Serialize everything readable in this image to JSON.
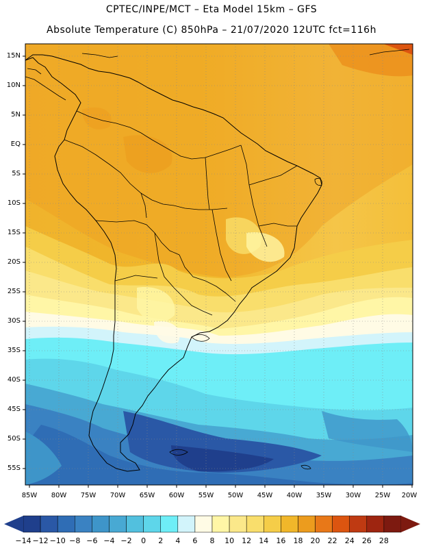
{
  "title_line1": "CPTEC/INPE/MCT –  Eta Model 15km – GFS",
  "title_line2": "Absolute Temperature (C) 850hPa – 21/07/2020 12UTC fct=116h",
  "lat_labels": [
    "15N",
    "10N",
    "5N",
    "EQ",
    "5S",
    "10S",
    "15S",
    "20S",
    "25S",
    "30S",
    "35S",
    "40S",
    "45S",
    "50S",
    "55S"
  ],
  "lon_labels": [
    "85W",
    "80W",
    "75W",
    "70W",
    "65W",
    "60W",
    "55W",
    "50W",
    "45W",
    "40W",
    "35W",
    "30W",
    "25W",
    "20W"
  ],
  "colorbar": {
    "labels": [
      "-14",
      "-12",
      "-10",
      "-8",
      "-6",
      "-4",
      "-2",
      "0",
      "2",
      "4",
      "6",
      "8",
      "10",
      "12",
      "14",
      "16",
      "18",
      "20",
      "22",
      "24",
      "26",
      "28"
    ],
    "colors": [
      "#1f3f8c",
      "#2a58a6",
      "#2f6db5",
      "#3a82c2",
      "#3e95c9",
      "#48a9d3",
      "#52c0de",
      "#5ed6ea",
      "#6eeef7",
      "#d2f4fb",
      "#fffbe5",
      "#fff6a6",
      "#fbe88a",
      "#f9de6c",
      "#f5cd48",
      "#f1b72a",
      "#ec9c1e",
      "#e87818",
      "#dc5510",
      "#bf3a12",
      "#9e2510",
      "#7d1a10"
    ]
  }
}
